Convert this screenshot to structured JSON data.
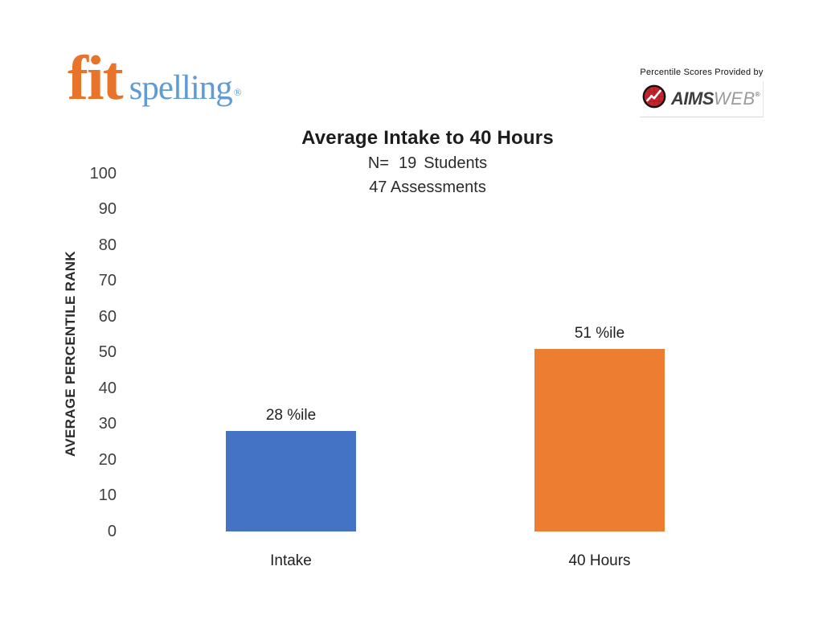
{
  "branding": {
    "logo": {
      "fit": "fit",
      "spelling": "spelling",
      "registered": "®",
      "fit_color": "#E8732A",
      "spelling_color": "#5F9BD4"
    }
  },
  "provider": {
    "caption": "Percentile Scores Provided by",
    "aims": "AIMS",
    "web": "WEB",
    "registered": "®",
    "icon": "aimsweb-graph-icon",
    "icon_red": "#C8242C",
    "icon_ring": "#111111"
  },
  "chart_data": {
    "type": "bar",
    "title": "Average Intake to 40 Hours",
    "subtitle_n_prefix": "N=",
    "subtitle_n_value": "19",
    "subtitle_n_suffix": "Students",
    "subtitle_line2": "47 Assessments",
    "ylabel": "AVERAGE PERCENTILE RANK",
    "xlabel": "",
    "ylim": [
      0,
      100
    ],
    "yticks": [
      0,
      10,
      20,
      30,
      40,
      50,
      60,
      70,
      80,
      90,
      100
    ],
    "grid": false,
    "legend": "none",
    "categories": [
      "Intake",
      "40 Hours"
    ],
    "values": [
      28,
      51
    ],
    "value_labels": [
      "28 %ile",
      "51 %ile"
    ],
    "bar_colors": [
      "#4472C4",
      "#ED7D31"
    ]
  }
}
